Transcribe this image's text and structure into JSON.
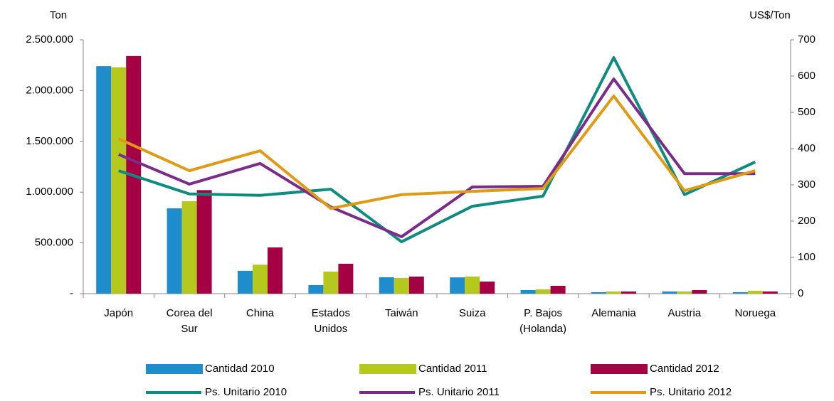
{
  "chart_data": {
    "type": "bar-line",
    "y_label": "Ton",
    "y2_label": "US$/Ton",
    "categories": [
      "Japón",
      "Corea del\nSur",
      "China",
      "Estados\nUnidos",
      "Taiwán",
      "Suiza",
      "P. Bajos\n(Holanda)",
      "Alemania",
      "Austria",
      "Noruega"
    ],
    "ylim": [
      0,
      2500000
    ],
    "yticks": [
      {
        "value": 0,
        "label": "-"
      },
      {
        "value": 500000,
        "label": "500.000"
      },
      {
        "value": 1000000,
        "label": "1.000.000"
      },
      {
        "value": 1500000,
        "label": "1.500.000"
      },
      {
        "value": 2000000,
        "label": "2.000.000"
      },
      {
        "value": 2500000,
        "label": "2.500.000"
      }
    ],
    "y2lim": [
      0,
      700
    ],
    "y2ticks": [
      0,
      100,
      200,
      300,
      400,
      500,
      600,
      700
    ],
    "series": [
      {
        "name": "Cantidad 2010",
        "type": "bar",
        "color": "#1f8ccc",
        "values": [
          2240000,
          840000,
          225000,
          84000,
          161000,
          160000,
          35000,
          14000,
          21000,
          14000
        ]
      },
      {
        "name": "Cantidad 2011",
        "type": "bar",
        "color": "#b5c81e",
        "values": [
          2230000,
          910000,
          285000,
          217000,
          154000,
          168000,
          42000,
          21000,
          21000,
          28000
        ]
      },
      {
        "name": "Cantidad 2012",
        "type": "bar",
        "color": "#a50044",
        "values": [
          2340000,
          1020000,
          455000,
          294000,
          168000,
          119000,
          77000,
          21000,
          35000,
          21000
        ]
      },
      {
        "name": "Ps. Unitario 2010",
        "type": "line",
        "axis": "y2",
        "color": "#0f8c80",
        "values": [
          339,
          275,
          271,
          288,
          143,
          241,
          269,
          651,
          273,
          363
        ]
      },
      {
        "name": "Ps. Unitario 2011",
        "type": "line",
        "axis": "y2",
        "color": "#7b2c8b",
        "values": [
          384,
          302,
          359,
          239,
          157,
          294,
          296,
          592,
          331,
          331
        ]
      },
      {
        "name": "Ps. Unitario 2012",
        "type": "line",
        "axis": "y2",
        "color": "#e09a14",
        "values": [
          427,
          339,
          394,
          235,
          273,
          282,
          290,
          545,
          284,
          339
        ]
      }
    ]
  }
}
